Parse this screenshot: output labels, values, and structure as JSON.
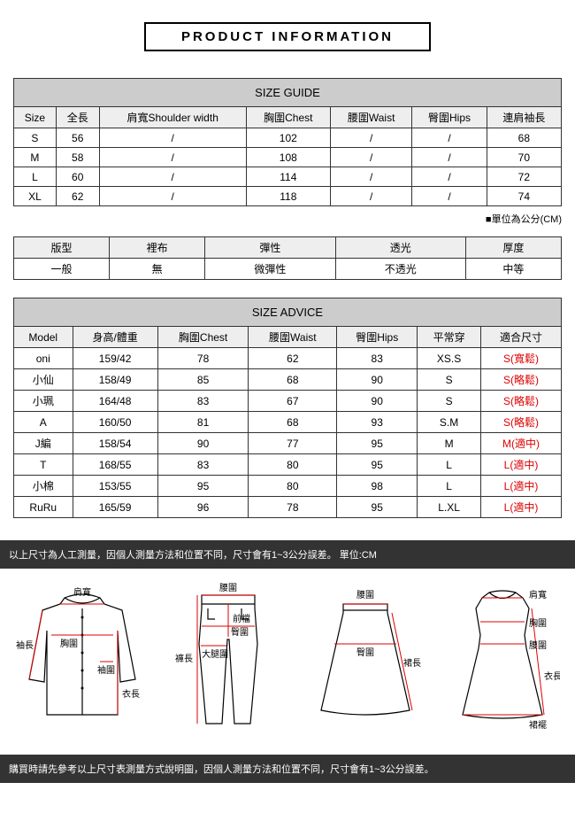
{
  "header": {
    "title": "PRODUCT INFORMATION"
  },
  "sizeGuide": {
    "title": "SIZE GUIDE",
    "columns": [
      "Size",
      "全長",
      "肩寬Shoulder width",
      "胸圍Chest",
      "腰圍Waist",
      "臀圍Hips",
      "連肩袖長"
    ],
    "rows": [
      [
        "S",
        "56",
        "/",
        "102",
        "/",
        "/",
        "68"
      ],
      [
        "M",
        "58",
        "/",
        "108",
        "/",
        "/",
        "70"
      ],
      [
        "L",
        "60",
        "/",
        "114",
        "/",
        "/",
        "72"
      ],
      [
        "XL",
        "62",
        "/",
        "118",
        "/",
        "/",
        "74"
      ]
    ],
    "unitNote": "■單位為公分(CM)"
  },
  "fabric": {
    "columns": [
      "版型",
      "裡布",
      "彈性",
      "透光",
      "厚度"
    ],
    "rows": [
      [
        "一般",
        "無",
        "微彈性",
        "不透光",
        "中等"
      ]
    ]
  },
  "sizeAdvice": {
    "title": "SIZE ADVICE",
    "columns": [
      "Model",
      "身高/體重",
      "胸圍Chest",
      "腰圍Waist",
      "臀圍Hips",
      "平常穿",
      "適合尺寸"
    ],
    "rows": [
      {
        "cells": [
          "oni",
          "159/42",
          "78",
          "62",
          "83",
          "XS.S"
        ],
        "fit": "S(寬鬆)"
      },
      {
        "cells": [
          "小仙",
          "158/49",
          "85",
          "68",
          "90",
          "S"
        ],
        "fit": "S(略鬆)"
      },
      {
        "cells": [
          "小珮",
          "164/48",
          "83",
          "67",
          "90",
          "S"
        ],
        "fit": "S(略鬆)"
      },
      {
        "cells": [
          "A",
          "160/50",
          "81",
          "68",
          "93",
          "S.M"
        ],
        "fit": "S(略鬆)"
      },
      {
        "cells": [
          "J編",
          "158/54",
          "90",
          "77",
          "95",
          "M"
        ],
        "fit": "M(適中)"
      },
      {
        "cells": [
          "T",
          "168/55",
          "83",
          "80",
          "95",
          "L"
        ],
        "fit": "L(適中)"
      },
      {
        "cells": [
          "小棉",
          "153/55",
          "95",
          "80",
          "98",
          "L"
        ],
        "fit": "L(適中)"
      },
      {
        "cells": [
          "RuRu",
          "165/59",
          "96",
          "78",
          "95",
          "L.XL"
        ],
        "fit": "L(適中)"
      }
    ]
  },
  "notes": {
    "top": "以上尺寸為人工測量，因個人測量方法和位置不同，尺寸會有1~3公分誤差。  單位:CM",
    "bottom": "購買時請先參考以上尺寸表測量方式說明圖，因個人測量方法和位置不同，尺寸會有1~3公分誤差。"
  },
  "diagramLabels": {
    "shoulder": "肩寬",
    "chest": "胸圍",
    "sleeve": "袖長",
    "cuff": "袖圍",
    "length": "衣長",
    "waist": "腰圍",
    "front": "前檔",
    "pantLen": "褲長",
    "thigh": "大腿圍",
    "hip": "臀圍",
    "skirtLen": "裙長",
    "hem": "裙襬"
  }
}
